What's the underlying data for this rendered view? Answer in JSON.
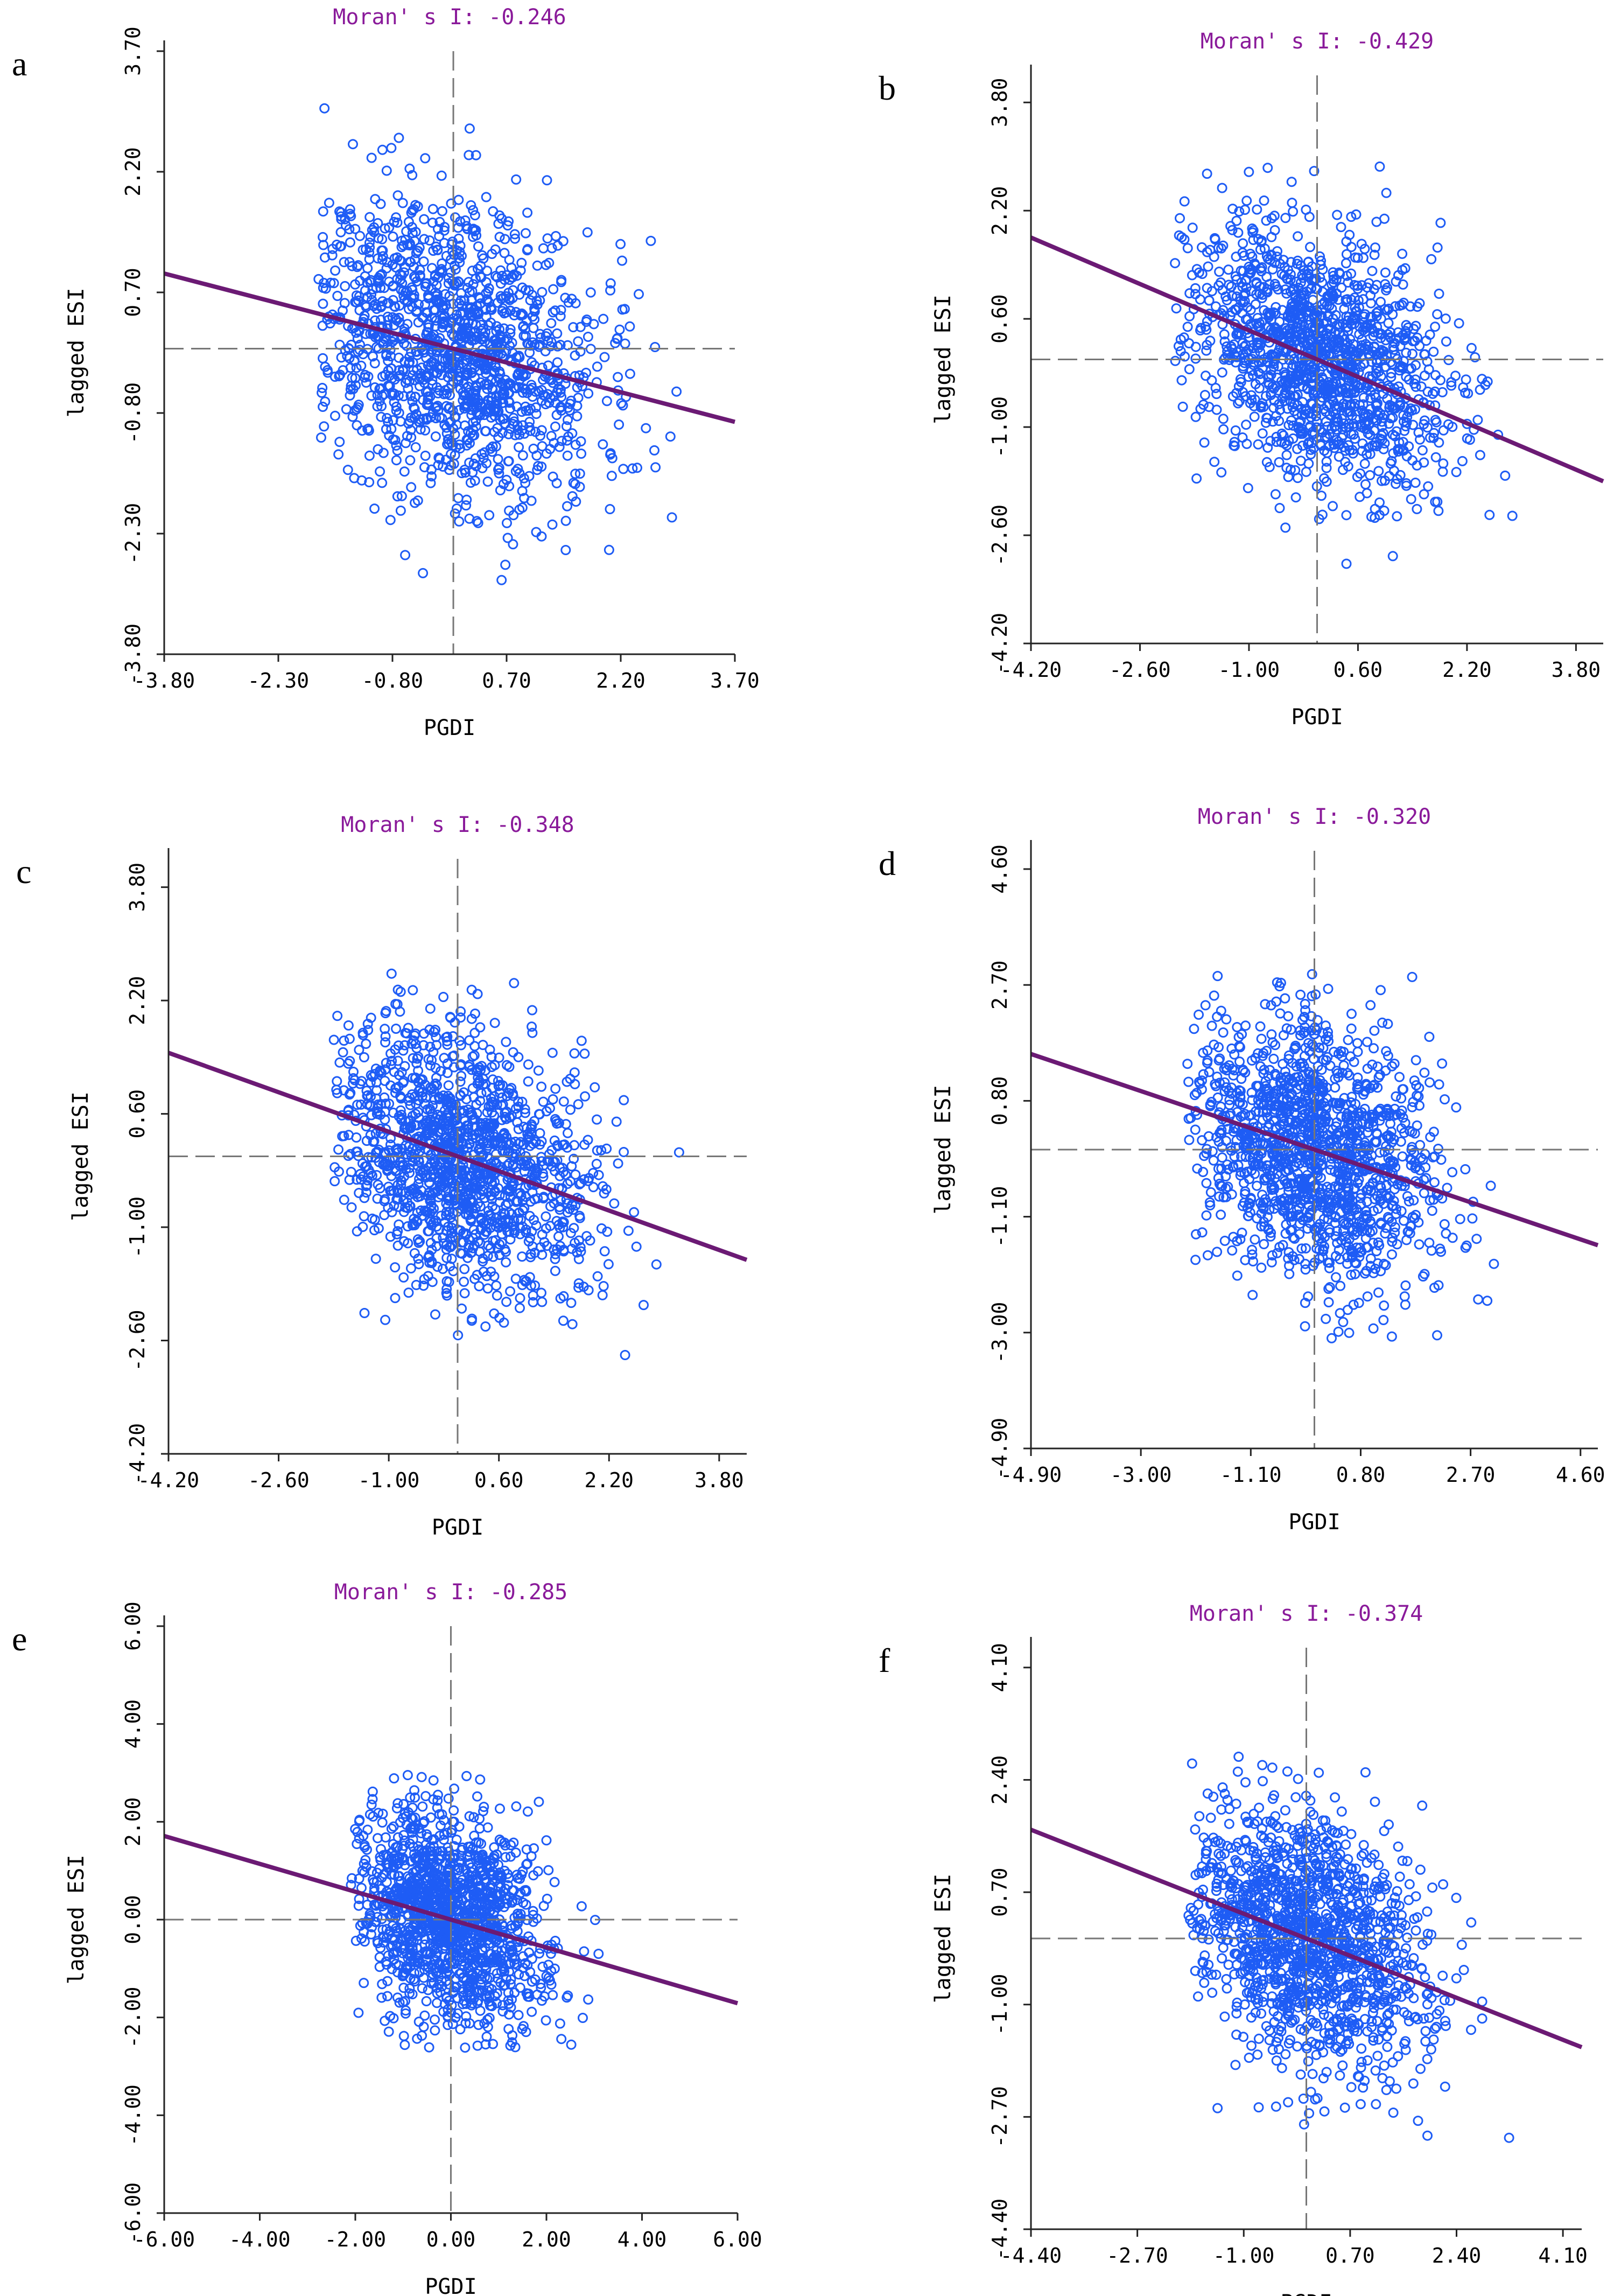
{
  "chart_data": [
    {
      "panel": "a",
      "type": "scatter",
      "title": "Moran' s I: -0.246",
      "xlabel": "PGDI",
      "ylabel": "lagged ESI",
      "xlim": [
        -3.8,
        3.7
      ],
      "ylim": [
        -3.8,
        3.7
      ],
      "xticks": [
        -3.8,
        -2.3,
        -0.8,
        0.7,
        2.2,
        3.7
      ],
      "yticks": [
        -3.8,
        -2.3,
        -0.8,
        0.7,
        2.2,
        3.7
      ],
      "xtick_labels": [
        "-3.80",
        "-2.30",
        "-0.80",
        "0.70",
        "2.20",
        "3.70"
      ],
      "ytick_labels": [
        "-3.80",
        "-2.30",
        "-0.80",
        "0.70",
        "2.20",
        "3.70"
      ],
      "slope": -0.246,
      "cloud": {
        "x_range": [
          -1.8,
          3.2
        ],
        "y_range": [
          -3.5,
          3.1
        ],
        "center": [
          0.0,
          0.0
        ],
        "sx": 0.95,
        "sy": 0.9,
        "n": 1400,
        "seed": 11
      }
    },
    {
      "panel": "b",
      "type": "scatter",
      "title": "Moran' s I: -0.429",
      "xlabel": "PGDI",
      "ylabel": "lagged ESI",
      "xlim": [
        -4.2,
        4.2
      ],
      "ylim": [
        -4.2,
        4.2
      ],
      "xticks": [
        -4.2,
        -2.6,
        -1.0,
        0.6,
        2.2,
        3.8
      ],
      "yticks": [
        -4.2,
        -2.6,
        -1.0,
        0.6,
        2.2,
        3.8
      ],
      "xtick_labels": [
        "-4.20",
        "-2.60",
        "-1.00",
        "0.60",
        "2.20",
        "3.80"
      ],
      "ytick_labels": [
        "-4.20",
        "-2.60",
        "-1.00",
        "0.60",
        "2.20",
        "3.80"
      ],
      "slope": -0.429,
      "cloud": {
        "x_range": [
          -2.1,
          3.7
        ],
        "y_range": [
          -3.2,
          3.0
        ],
        "center": [
          0.0,
          0.0
        ],
        "sx": 0.95,
        "sy": 0.9,
        "n": 1400,
        "seed": 23
      }
    },
    {
      "panel": "c",
      "type": "scatter",
      "title": "Moran' s I: -0.348",
      "xlabel": "PGDI",
      "ylabel": "lagged ESI",
      "xlim": [
        -4.2,
        4.2
      ],
      "ylim": [
        -4.2,
        4.2
      ],
      "xticks": [
        -4.2,
        -2.6,
        -1.0,
        0.6,
        2.2,
        3.8
      ],
      "yticks": [
        -4.2,
        -2.6,
        -1.0,
        0.6,
        2.2,
        3.8
      ],
      "xtick_labels": [
        "-4.20",
        "-2.60",
        "-1.00",
        "0.60",
        "2.20",
        "3.80"
      ],
      "ytick_labels": [
        "-4.20",
        "-2.60",
        "-1.00",
        "0.60",
        "2.20",
        "3.80"
      ],
      "slope": -0.348,
      "cloud": {
        "x_range": [
          -1.8,
          3.6
        ],
        "y_range": [
          -3.6,
          2.8
        ],
        "center": [
          0.0,
          0.0
        ],
        "sx": 0.95,
        "sy": 0.9,
        "n": 1400,
        "seed": 37
      }
    },
    {
      "panel": "d",
      "type": "scatter",
      "title": "Moran' s I: -0.320",
      "xlabel": "PGDI",
      "ylabel": "lagged ESI",
      "xlim": [
        -4.9,
        4.9
      ],
      "ylim": [
        -4.9,
        4.9
      ],
      "xticks": [
        -4.9,
        -3.0,
        -1.1,
        0.8,
        2.7,
        4.6
      ],
      "yticks": [
        -4.9,
        -3.0,
        -1.1,
        0.8,
        2.7,
        4.6
      ],
      "xtick_labels": [
        "-4.90",
        "-3.00",
        "-1.10",
        "0.80",
        "2.70",
        "4.60"
      ],
      "ytick_labels": [
        "-4.90",
        "-3.00",
        "-1.10",
        "0.80",
        "2.70",
        "4.60"
      ],
      "slope": -0.32,
      "cloud": {
        "x_range": [
          -2.2,
          3.9
        ],
        "y_range": [
          -3.1,
          2.9
        ],
        "center": [
          0.0,
          0.0
        ],
        "sx": 1.05,
        "sy": 1.05,
        "n": 1400,
        "seed": 41
      }
    },
    {
      "panel": "e",
      "type": "scatter",
      "title": "Moran' s I: -0.285",
      "xlabel": "PGDI",
      "ylabel": "lagged ESI",
      "xlim": [
        -6.0,
        6.0
      ],
      "ylim": [
        -6.0,
        6.0
      ],
      "xticks": [
        -6.0,
        -4.0,
        -2.0,
        0.0,
        2.0,
        4.0,
        6.0
      ],
      "yticks": [
        -6.0,
        -4.0,
        -2.0,
        0.0,
        2.0,
        4.0,
        6.0
      ],
      "xtick_labels": [
        "-6.00",
        "-4.00",
        "-2.00",
        "0.00",
        "2.00",
        "4.00",
        "6.00"
      ],
      "ytick_labels": [
        "-6.00",
        "-4.00",
        "-2.00",
        "0.00",
        "2.00",
        "4.00",
        "6.00"
      ],
      "slope": -0.285,
      "cloud": {
        "x_range": [
          -2.1,
          4.1
        ],
        "y_range": [
          -2.7,
          3.0
        ],
        "center": [
          0.0,
          0.0
        ],
        "sx": 1.0,
        "sy": 1.1,
        "n": 1400,
        "seed": 53
      }
    },
    {
      "panel": "f",
      "type": "scatter",
      "title": "Moran' s I: -0.374",
      "xlabel": "PGDI",
      "ylabel": "lagged ESI",
      "xlim": [
        -4.4,
        4.4
      ],
      "ylim": [
        -4.4,
        4.4
      ],
      "xticks": [
        -4.4,
        -2.7,
        -1.0,
        0.7,
        2.4,
        4.1
      ],
      "yticks": [
        -4.4,
        -2.7,
        -1.0,
        0.7,
        2.4,
        4.1
      ],
      "xtick_labels": [
        "-4.40",
        "-2.70",
        "-1.00",
        "0.70",
        "2.40",
        "4.10"
      ],
      "ytick_labels": [
        "-4.40",
        "-2.70",
        "-1.00",
        "0.70",
        "2.40",
        "4.10"
      ],
      "slope": -0.374,
      "cloud": {
        "x_range": [
          -1.9,
          3.9
        ],
        "y_range": [
          -3.3,
          3.0
        ],
        "center": [
          0.0,
          0.0
        ],
        "sx": 0.95,
        "sy": 0.9,
        "n": 1400,
        "seed": 67
      }
    }
  ],
  "colors": {
    "points": "#1e5cf5",
    "regression": "#6b1a74",
    "title": "#8a1a9a",
    "dashed": "#777777",
    "axis": "#222222"
  }
}
